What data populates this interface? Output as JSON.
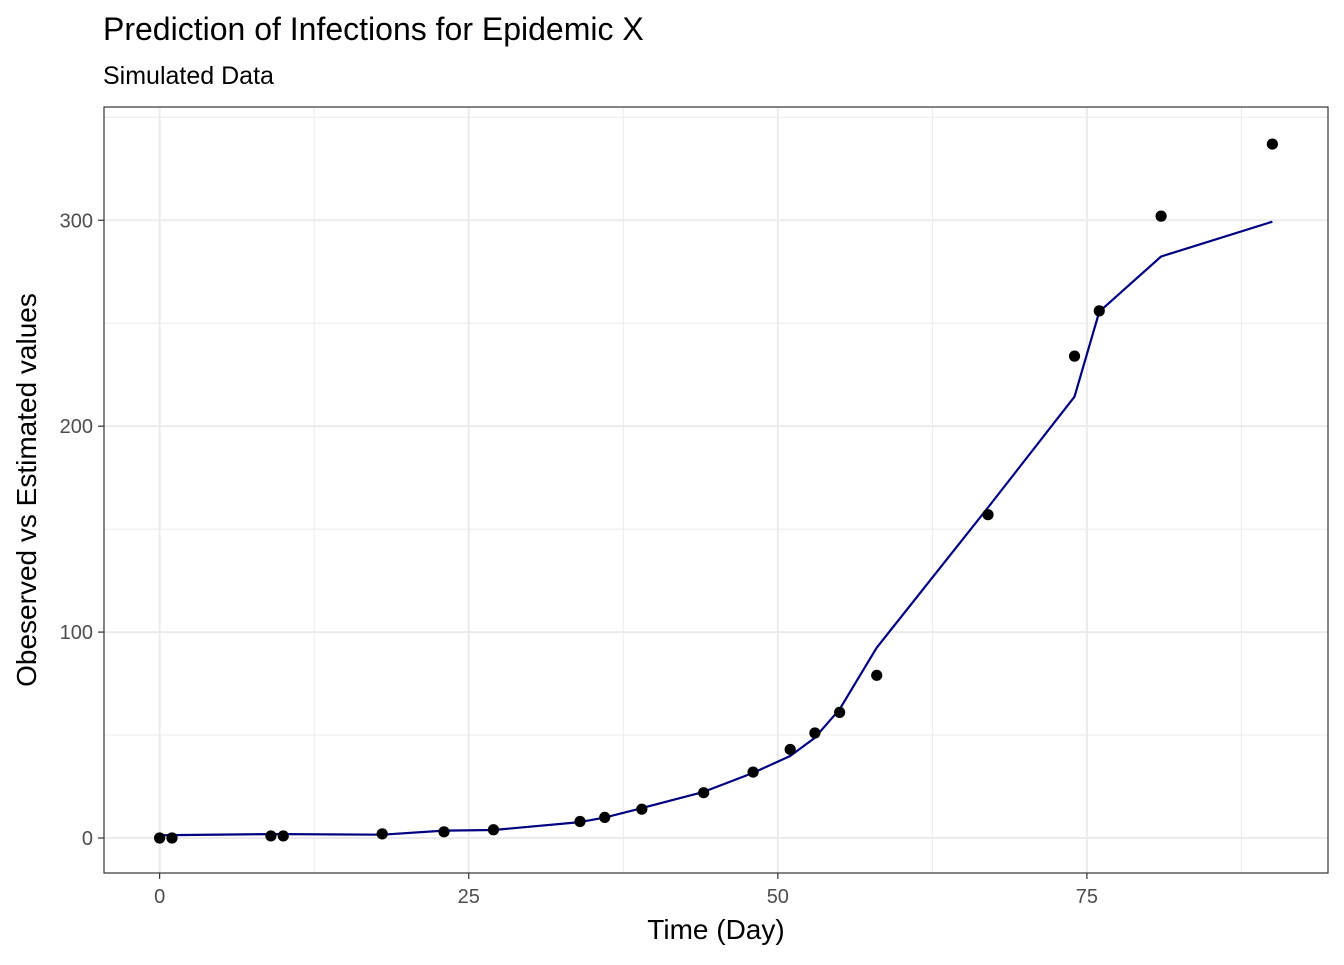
{
  "chart_data": {
    "type": "scatter",
    "title": "Prediction of Infections for Epidemic X",
    "subtitle": "Simulated Data",
    "xlabel": "Time (Day)",
    "ylabel": "Obeserved vs Estimated values",
    "xlim": [
      -4.5,
      94.5
    ],
    "ylim": [
      -17,
      355
    ],
    "x_ticks": [
      0,
      25,
      50,
      75
    ],
    "x_tick_labels": [
      "0",
      "25",
      "50",
      "75"
    ],
    "y_ticks": [
      0,
      100,
      200,
      300
    ],
    "y_tick_labels": [
      "0",
      "100",
      "200",
      "300"
    ],
    "x_minor": [
      12.5,
      37.5,
      62.5,
      87.5
    ],
    "y_minor": [
      50,
      150,
      250,
      350
    ],
    "grid": true,
    "legend": "none",
    "colors": {
      "observed": "#000000",
      "estimated": "#000080",
      "grid": "#ebebeb",
      "panel_border": "#333333"
    },
    "series": [
      {
        "kind": "points",
        "x": [
          0,
          1,
          9,
          10,
          18,
          23,
          27,
          34,
          36,
          39,
          44,
          48,
          51,
          53,
          55,
          58,
          67,
          74,
          76,
          81,
          90
        ],
        "y": [
          0,
          0,
          1,
          1,
          2,
          3,
          4,
          8,
          10,
          14,
          22,
          32,
          43,
          51,
          61,
          79,
          157,
          234,
          256,
          302,
          337
        ]
      },
      {
        "kind": "line",
        "x": [
          0,
          1,
          9,
          10,
          18,
          23,
          27,
          34,
          36,
          39,
          44,
          48,
          51,
          53,
          55,
          58,
          67,
          74,
          76,
          81,
          90
        ],
        "y": [
          1.3,
          1.4,
          1.9,
          1.9,
          1.6,
          3.6,
          3.9,
          7.7,
          9.9,
          14.5,
          22.4,
          31.6,
          39.8,
          48.7,
          62.5,
          92.4,
          160.5,
          214.3,
          255.6,
          282.4,
          299.3
        ]
      }
    ]
  }
}
